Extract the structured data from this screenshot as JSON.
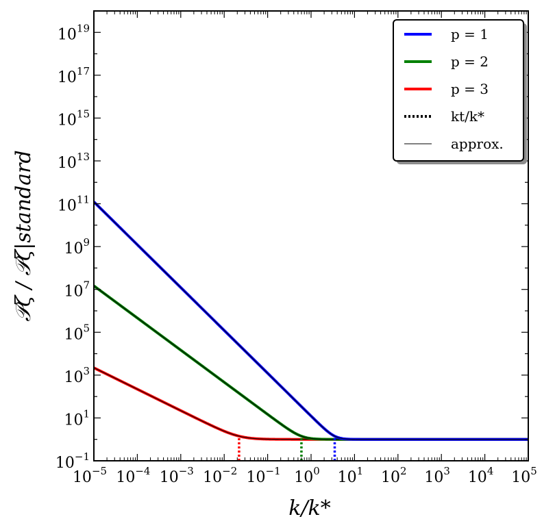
{
  "chart_data": {
    "type": "line",
    "title": "",
    "xlabel": "k/k*",
    "ylabel": "𝒫ζ / 𝒫ζ|standard",
    "x_scale": "log",
    "y_scale": "log",
    "xlim": [
      1e-05,
      100000.0
    ],
    "ylim": [
      0.1,
      1e+20
    ],
    "x_ticks": [
      {
        "base": "10",
        "exp": "−5"
      },
      {
        "base": "10",
        "exp": "−4"
      },
      {
        "base": "10",
        "exp": "−3"
      },
      {
        "base": "10",
        "exp": "−2"
      },
      {
        "base": "10",
        "exp": "−1"
      },
      {
        "base": "10",
        "exp": "0"
      },
      {
        "base": "10",
        "exp": "1"
      },
      {
        "base": "10",
        "exp": "2"
      },
      {
        "base": "10",
        "exp": "3"
      },
      {
        "base": "10",
        "exp": "4"
      },
      {
        "base": "10",
        "exp": "5"
      }
    ],
    "y_ticks": [
      {
        "base": "10",
        "exp": "−1"
      },
      {
        "base": "10",
        "exp": "1"
      },
      {
        "base": "10",
        "exp": "3"
      },
      {
        "base": "10",
        "exp": "5"
      },
      {
        "base": "10",
        "exp": "7"
      },
      {
        "base": "10",
        "exp": "9"
      },
      {
        "base": "10",
        "exp": "11"
      },
      {
        "base": "10",
        "exp": "13"
      },
      {
        "base": "10",
        "exp": "15"
      },
      {
        "base": "10",
        "exp": "17"
      },
      {
        "base": "10",
        "exp": "19"
      }
    ],
    "grid": false,
    "legend_position": "top-right",
    "series": [
      {
        "name": "p = 1",
        "color": "#0000ff",
        "k_t": 3.5,
        "low_k_slope": -2,
        "plateau": 1
      },
      {
        "name": "p = 2",
        "color": "#008000",
        "k_t": 0.6,
        "low_k_slope": -1.5,
        "plateau": 1
      },
      {
        "name": "p = 3",
        "color": "#ff0000",
        "k_t": 0.022,
        "low_k_slope": -1,
        "plateau": 1
      }
    ],
    "markers": [
      {
        "name": "kt/k*",
        "style": "dotted",
        "applies_to": "each series at k_t"
      }
    ],
    "legend": [
      {
        "label": "p = 1",
        "style": "solid",
        "color": "#0000ff"
      },
      {
        "label": "p = 2",
        "style": "solid",
        "color": "#008000"
      },
      {
        "label": "p = 3",
        "style": "solid",
        "color": "#ff0000"
      },
      {
        "label": "kt/k*",
        "style": "dotted",
        "color": "#000000"
      },
      {
        "label": "approx.",
        "style": "thin",
        "color": "#000000"
      }
    ]
  }
}
